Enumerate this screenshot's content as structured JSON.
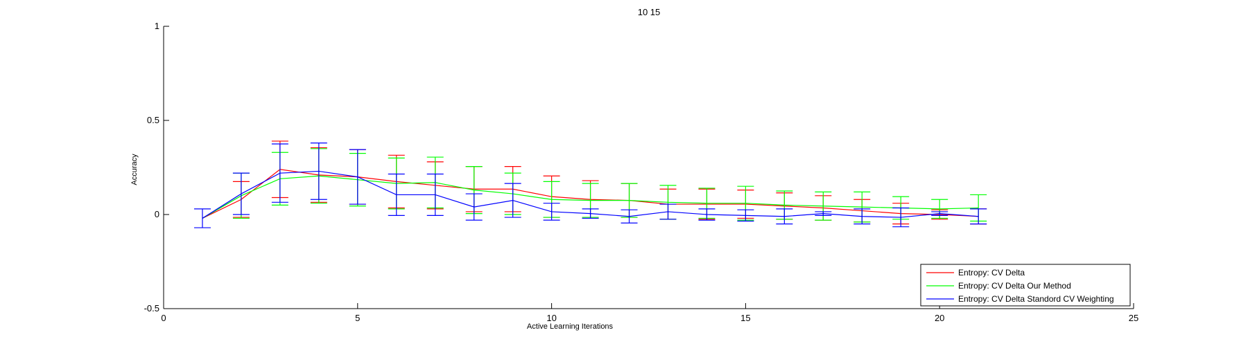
{
  "chart_data": {
    "type": "line",
    "title": "10  15",
    "xlabel": "Active Learning Iterations",
    "ylabel": "Accuracy",
    "xlim": [
      0,
      25
    ],
    "ylim": [
      -0.5,
      1
    ],
    "xticks": [
      0,
      5,
      10,
      15,
      20,
      25
    ],
    "yticks": [
      -0.5,
      0,
      0.5,
      1
    ],
    "xtick_labels": [
      "0",
      "5",
      "10",
      "15",
      "20",
      "25"
    ],
    "ytick_labels": [
      "-0.5",
      "0",
      "0.5",
      "1"
    ],
    "grid": false,
    "legend_position": "bottom-right",
    "error_bars": true,
    "series": [
      {
        "name": "Entropy: CV Delta",
        "color": "#ff0000",
        "x": [
          1,
          2,
          3,
          4,
          5,
          6,
          7,
          8,
          9,
          10,
          11,
          12,
          13,
          14,
          15,
          16,
          17,
          18,
          19,
          20,
          21
        ],
        "y": [
          -0.02,
          0.08,
          0.24,
          0.21,
          0.2,
          0.175,
          0.155,
          0.135,
          0.135,
          0.095,
          0.08,
          0.075,
          0.055,
          0.055,
          0.055,
          0.045,
          0.035,
          0.02,
          0.005,
          0,
          -0.01
        ],
        "err": [
          0,
          0.095,
          0.15,
          0.145,
          0.145,
          0.14,
          0.125,
          0.12,
          0.12,
          0.11,
          0.1,
          0.09,
          0.08,
          0.08,
          0.075,
          0.07,
          0.065,
          0.06,
          0.055,
          0.025,
          0.04
        ]
      },
      {
        "name": "Entropy: CV Delta Our Method",
        "color": "#00ff00",
        "x": [
          1,
          2,
          3,
          4,
          5,
          6,
          7,
          8,
          9,
          10,
          11,
          12,
          13,
          14,
          15,
          16,
          17,
          18,
          19,
          20,
          21
        ],
        "y": [
          -0.02,
          0.1,
          0.19,
          0.205,
          0.185,
          0.165,
          0.17,
          0.13,
          0.11,
          0.08,
          0.075,
          0.075,
          0.065,
          0.06,
          0.06,
          0.05,
          0.045,
          0.04,
          0.035,
          0.03,
          0.035
        ],
        "err": [
          0,
          0.12,
          0.14,
          0.145,
          0.14,
          0.135,
          0.135,
          0.125,
          0.11,
          0.095,
          0.09,
          0.09,
          0.09,
          0.08,
          0.09,
          0.075,
          0.075,
          0.08,
          0.06,
          0.05,
          0.07
        ]
      },
      {
        "name": "Entropy: CV Delta Standord CV Weighting",
        "color": "#0000ff",
        "x": [
          1,
          2,
          3,
          4,
          5,
          6,
          7,
          8,
          9,
          10,
          11,
          12,
          13,
          14,
          15,
          16,
          17,
          18,
          19,
          20,
          21
        ],
        "y": [
          -0.02,
          0.11,
          0.22,
          0.23,
          0.2,
          0.105,
          0.105,
          0.04,
          0.075,
          0.015,
          0.005,
          -0.01,
          0.015,
          0,
          -0.005,
          -0.01,
          0.005,
          -0.01,
          -0.015,
          0.005,
          -0.01
        ],
        "err": [
          0.05,
          0.11,
          0.155,
          0.15,
          0.145,
          0.11,
          0.11,
          0.07,
          0.09,
          0.045,
          0.025,
          0.035,
          0.04,
          0.03,
          0.03,
          0.04,
          0.01,
          0.04,
          0.05,
          0.01,
          0.04
        ]
      }
    ]
  }
}
